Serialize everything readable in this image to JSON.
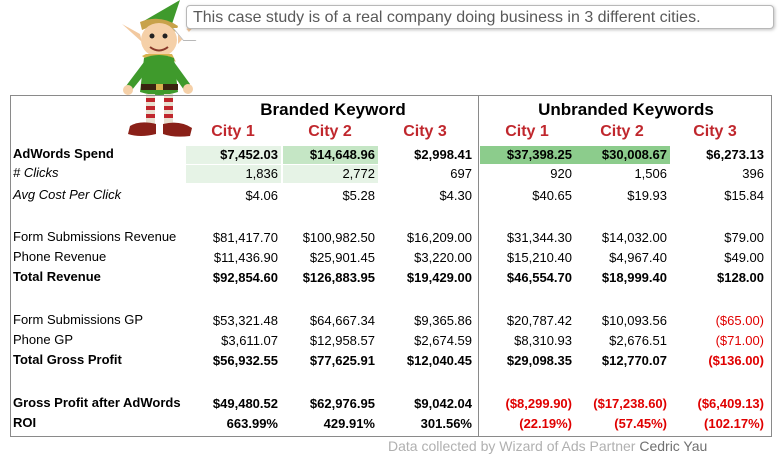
{
  "intro_text": "This case study is of a real company doing business in 3 different cities.",
  "groups": {
    "branded": "Branded Keyword",
    "unbranded": "Unbranded Keywords"
  },
  "cities": [
    "City 1",
    "City 2",
    "City 3",
    "City 1",
    "City 2",
    "City 3"
  ],
  "highlight_colors": {
    "light": "#e6f3e6",
    "medium": "#c5e6c5",
    "strong": "#8ccc8c"
  },
  "rows": [
    {
      "label": "AdWords Spend",
      "style": "bold",
      "values": [
        "$7,452.03",
        "$14,648.96",
        "$2,998.41",
        "$37,398.25",
        "$30,008.67",
        "$6,273.13"
      ]
    },
    {
      "label": "# Clicks",
      "style": "italic",
      "values": [
        "1,836",
        "2,772",
        "697",
        "920",
        "1,506",
        "396"
      ]
    },
    {
      "label": "Avg Cost Per Click",
      "style": "italic",
      "values": [
        "$4.06",
        "$5.28",
        "$4.30",
        "$40.65",
        "$19.93",
        "$15.84"
      ]
    },
    {
      "label": "Form Submissions Revenue",
      "style": "normal",
      "values": [
        "$81,417.70",
        "$100,982.50",
        "$16,209.00",
        "$31,344.30",
        "$14,032.00",
        "$79.00"
      ]
    },
    {
      "label": "Phone Revenue",
      "style": "normal",
      "values": [
        "$11,436.90",
        "$25,901.45",
        "$3,220.00",
        "$15,210.40",
        "$4,967.40",
        "$49.00"
      ]
    },
    {
      "label": "Total Revenue",
      "style": "bold",
      "values": [
        "$92,854.60",
        "$126,883.95",
        "$19,429.00",
        "$46,554.70",
        "$18,999.40",
        "$128.00"
      ]
    },
    {
      "label": "Form Submissions GP",
      "style": "normal",
      "values": [
        "$53,321.48",
        "$64,667.34",
        "$9,365.86",
        "$20,787.42",
        "$10,093.56",
        "($65.00)"
      ]
    },
    {
      "label": "Phone GP",
      "style": "normal",
      "values": [
        "$3,611.07",
        "$12,958.57",
        "$2,674.59",
        "$8,310.93",
        "$2,676.51",
        "($71.00)"
      ]
    },
    {
      "label": "Total Gross Profit",
      "style": "bold",
      "values": [
        "$56,932.55",
        "$77,625.91",
        "$12,040.45",
        "$29,098.35",
        "$12,770.07",
        "($136.00)"
      ]
    },
    {
      "label": "Gross Profit after AdWords",
      "style": "bold",
      "values": [
        "$49,480.52",
        "$62,976.95",
        "$9,042.04",
        "($8,299.90)",
        "($17,238.60)",
        "($6,409.13)"
      ]
    },
    {
      "label": "ROI",
      "style": "bold",
      "values": [
        "663.99%",
        "429.91%",
        "301.56%",
        "(22.19%)",
        "(57.45%)",
        "(102.17%)"
      ]
    }
  ],
  "footer": {
    "prefix": "Data collected by Wizard of Ads Partner",
    "author": "Cedric Yau"
  }
}
